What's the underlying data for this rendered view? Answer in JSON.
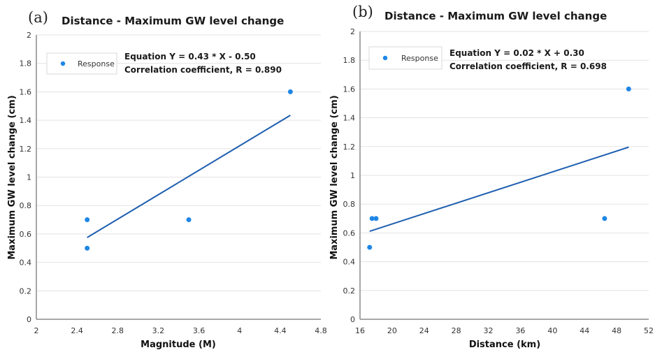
{
  "chart_data": [
    {
      "type": "scatter",
      "panel_label": "(a)",
      "title": "Distance - Maximum GW level change",
      "xlabel": "Magnitude (M)",
      "ylabel": "Maximum GW level change (cm)",
      "xlim": [
        2,
        4.8
      ],
      "ylim": [
        0,
        2
      ],
      "xticks": [
        "2",
        "2.4",
        "2.8",
        "3.2",
        "3.6",
        "4",
        "4.4",
        "4.8"
      ],
      "xtick_values": [
        2,
        2.4,
        2.8,
        3.2,
        3.6,
        4,
        4.4,
        4.8
      ],
      "yticks": [
        "0",
        "0.2",
        "0.4",
        "0.6",
        "0.8",
        "1",
        "1.2",
        "1.4",
        "1.6",
        "1.8",
        "2"
      ],
      "ytick_values": [
        0,
        0.2,
        0.4,
        0.6,
        0.8,
        1,
        1.2,
        1.4,
        1.6,
        1.8,
        2
      ],
      "grid": true,
      "legend": {
        "label": "Response",
        "placement": "top-left"
      },
      "equation": "Equation Y = 0.43 * X - 0.50",
      "correlation": "Correlation coefficient, R = 0.890",
      "series": [
        {
          "name": "Response",
          "x": [
            2.5,
            2.5,
            3.5,
            4.5
          ],
          "y": [
            0.7,
            0.5,
            0.7,
            1.6
          ]
        }
      ],
      "trendline": {
        "slope": 0.43,
        "intercept": -0.5,
        "x_range": [
          2.5,
          4.5
        ]
      },
      "colors": {
        "points": "#1f86e6",
        "trend": "#1f5fb0"
      }
    },
    {
      "type": "scatter",
      "panel_label": "(b)",
      "title": "Distance - Maximum GW level change",
      "xlabel": "Distance (km)",
      "ylabel": "Maximum GW level change (cm)",
      "xlim": [
        16,
        52
      ],
      "ylim": [
        0,
        2
      ],
      "xticks": [
        "16",
        "20",
        "24",
        "28",
        "32",
        "36",
        "40",
        "44",
        "48",
        "52"
      ],
      "xtick_values": [
        16,
        20,
        24,
        28,
        32,
        36,
        40,
        44,
        48,
        52
      ],
      "yticks": [
        "0",
        "0.2",
        "0.4",
        "0.6",
        "0.8",
        "1",
        "1.2",
        "1.4",
        "1.6",
        "1.8",
        "2"
      ],
      "ytick_values": [
        0,
        0.2,
        0.4,
        0.6,
        0.8,
        1,
        1.2,
        1.4,
        1.6,
        1.8,
        2
      ],
      "grid": true,
      "legend": {
        "label": "Response",
        "placement": "top-left"
      },
      "equation": "Equation Y = 0.02 * X + 0.30",
      "correlation": "Correlation coefficient, R = 0.698",
      "series": [
        {
          "name": "Response",
          "x": [
            17.2,
            17.5,
            18.0,
            46.5,
            49.5
          ],
          "y": [
            0.5,
            0.7,
            0.7,
            0.7,
            1.6
          ]
        }
      ],
      "trendline": {
        "slope": 0.0181,
        "intercept": 0.3,
        "x_range": [
          17.2,
          49.5
        ]
      },
      "colors": {
        "points": "#1f86e6",
        "trend": "#1f5fb0"
      }
    }
  ]
}
